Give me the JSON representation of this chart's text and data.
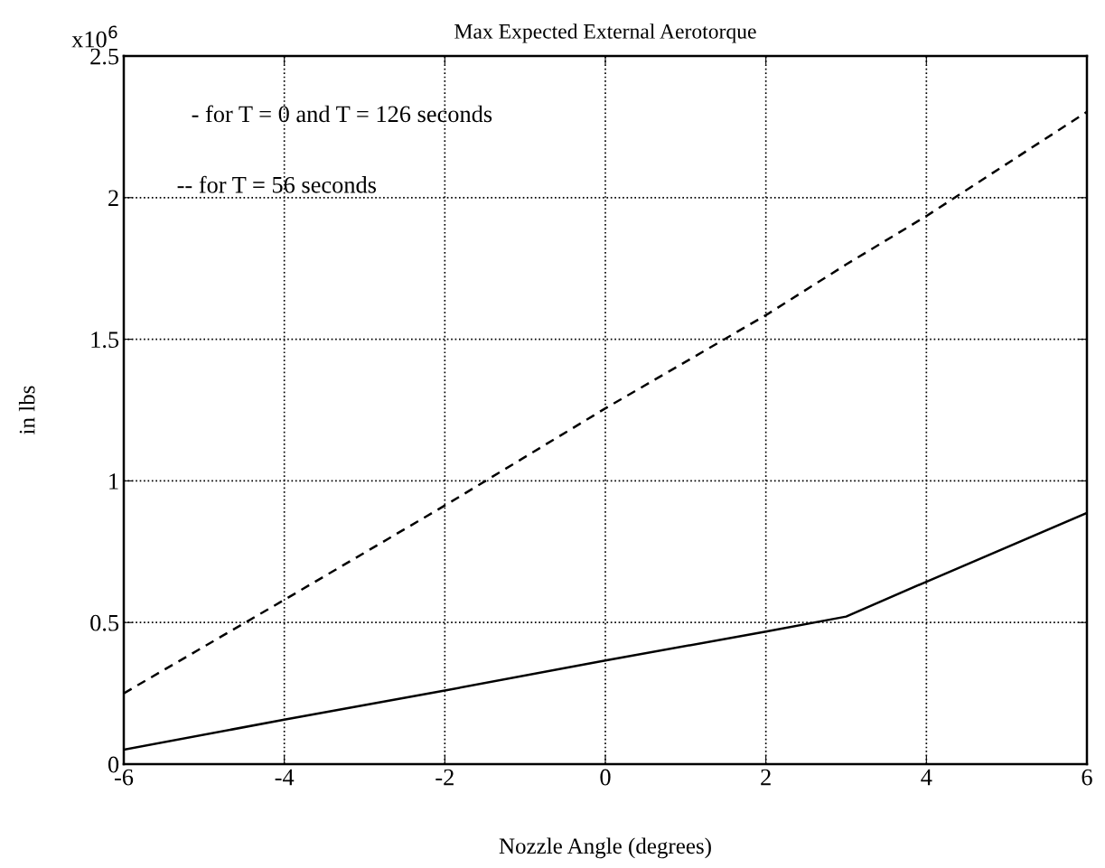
{
  "chart_data": {
    "type": "line",
    "title": "Max Expected External Aerotorque",
    "xlabel": "Nozzle Angle (degrees)",
    "ylabel": "in lbs",
    "annotations": [
      "x10$^{6}$",
      "- for T = 0 and T = 126 seconds",
      "-- for T = 56 seconds"
    ],
    "series": [
      {
        "color": "#000000",
        "line_style": "solid",
        "x": [
          -6,
          -4,
          -2,
          0,
          2,
          3,
          4,
          6
        ],
        "values": [
          0.051,
          0.157,
          0.26,
          0.366,
          0.468,
          0.521,
          0.644,
          0.887
        ]
      },
      {
        "color": "#000000",
        "line_style": "dashed",
        "x": [
          -6,
          -4,
          -2,
          0,
          2,
          3,
          4,
          6
        ],
        "values": [
          0.25,
          0.58,
          0.913,
          1.256,
          1.585,
          1.764,
          1.935,
          2.303
        ]
      }
    ],
    "xlim": [
      -6,
      6
    ],
    "xticks": [
      -6,
      -4,
      -2,
      0,
      2,
      4,
      6
    ],
    "ylim": [
      0,
      2.5
    ],
    "yticks": [
      0,
      0.5,
      1,
      1.5,
      2,
      2.5
    ],
    "grid": true,
    "legend": false,
    "marker": "none"
  }
}
